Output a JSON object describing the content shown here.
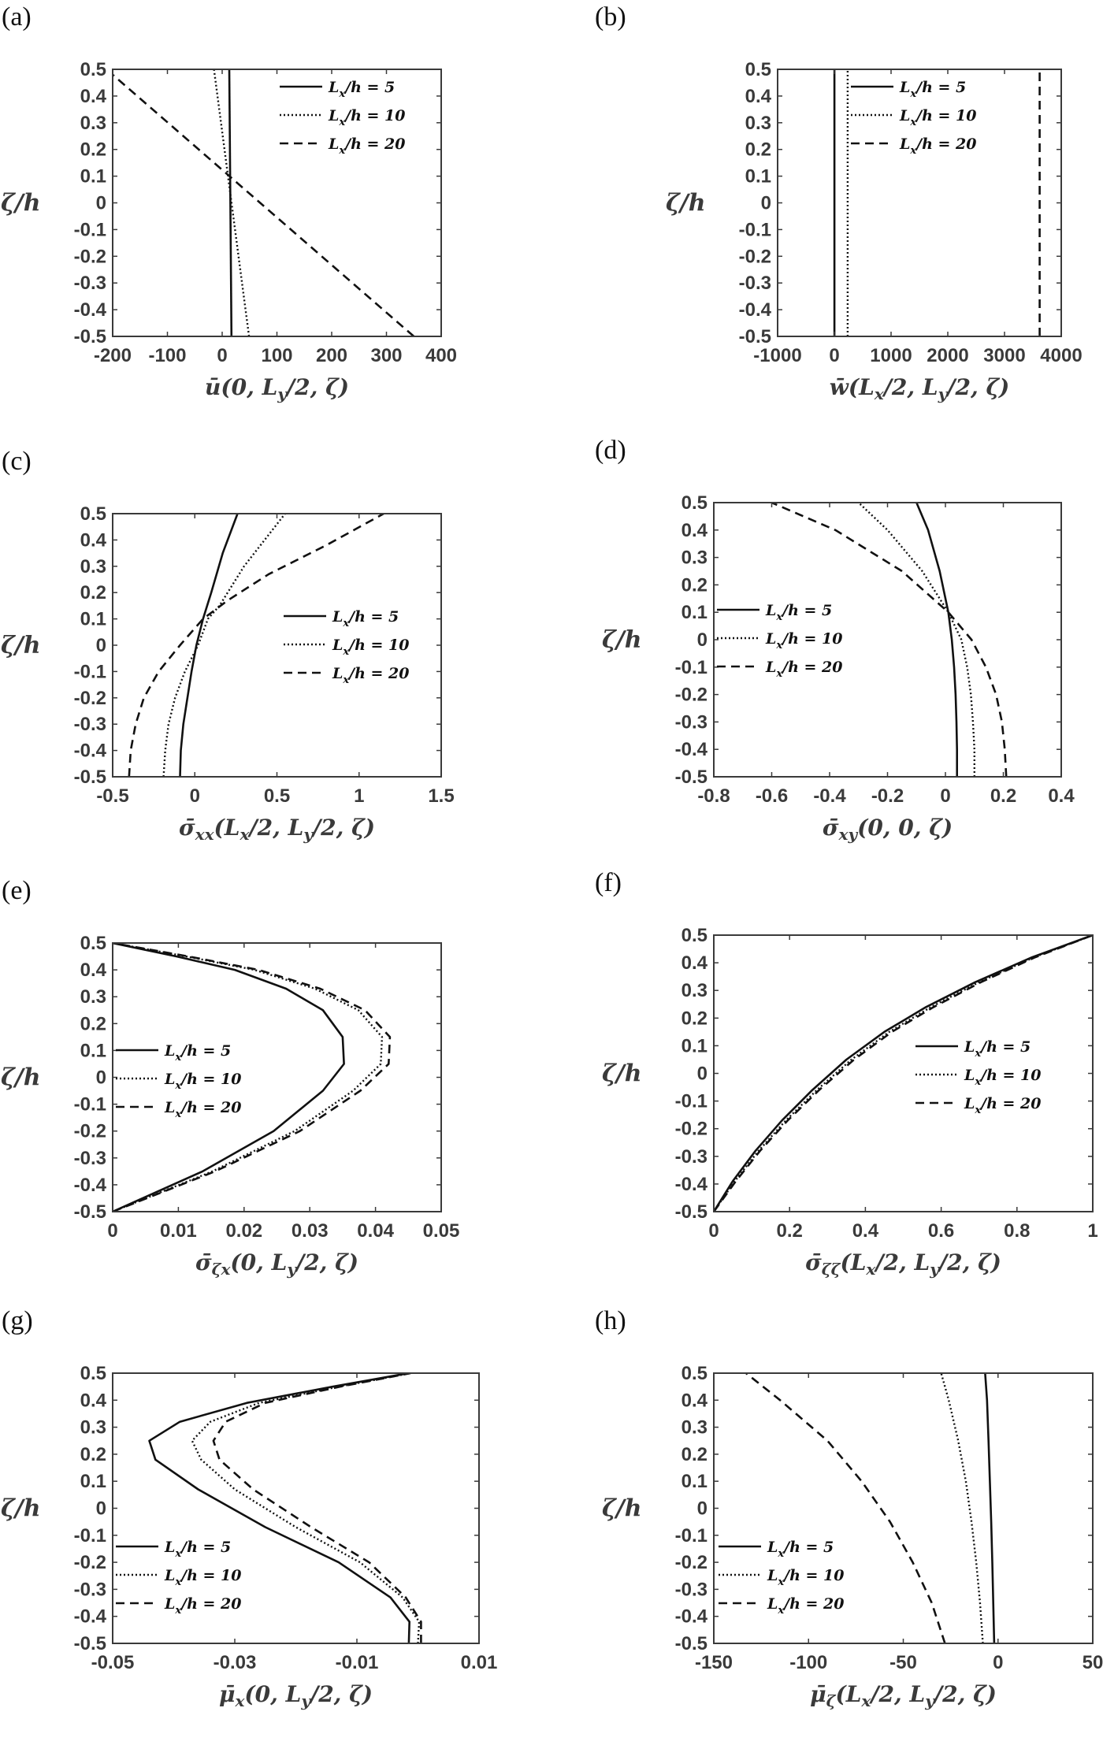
{
  "figure": {
    "panels": [
      {
        "letter": "(a)",
        "xlabel": "ū(0, L_y/2, ζ)",
        "ylabel": "ζ/h"
      },
      {
        "letter": "(b)",
        "xlabel": "w̄(L_x/2, L_y/2, ζ)",
        "ylabel": "ζ/h"
      },
      {
        "letter": "(c)",
        "xlabel": "σ̄_xx(L_x/2, L_y/2, ζ)",
        "ylabel": "ζ/h"
      },
      {
        "letter": "(d)",
        "xlabel": "σ̄_xy(0, 0, ζ)",
        "ylabel": "ζ/h"
      },
      {
        "letter": "(e)",
        "xlabel": "σ̄_ζx(0, L_y/2, ζ)",
        "ylabel": "ζ/h"
      },
      {
        "letter": "(f)",
        "xlabel": "σ̄_ζζ(L_x/2, L_y/2, ζ)",
        "ylabel": "ζ/h"
      },
      {
        "letter": "(g)",
        "xlabel": "μ̄_x(0, L_y/2, ζ)",
        "ylabel": "ζ/h"
      },
      {
        "letter": "(h)",
        "xlabel": "μ̄_ζ(L_x/2, L_y/2, ζ)",
        "ylabel": "ζ/h"
      }
    ]
  },
  "chart_data": [
    {
      "id": "a",
      "type": "line",
      "xlabel": "ū(0, L_y/2, ζ)",
      "ylabel": "ζ/h",
      "xlim": [
        -200,
        400
      ],
      "ylim": [
        -0.5,
        0.5
      ],
      "xticks": [
        -200,
        -100,
        0,
        100,
        200,
        300,
        400
      ],
      "yticks": [
        0.5,
        0.4,
        0.3,
        0.2,
        0.1,
        0,
        -0.1,
        -0.2,
        -0.3,
        -0.4,
        -0.5
      ],
      "legend": "top-right",
      "grid": false,
      "series": [
        {
          "name": "L_x/h = 5",
          "style": "solid",
          "x": [
            17,
            13
          ],
          "y": [
            -0.5,
            0.5
          ]
        },
        {
          "name": "L_x/h = 10",
          "style": "dotted",
          "x": [
            49,
            -15
          ],
          "y": [
            -0.5,
            0.5
          ]
        },
        {
          "name": "L_x/h = 20",
          "style": "dashed",
          "x": [
            350,
            -200
          ],
          "y": [
            -0.5,
            0.48
          ]
        }
      ]
    },
    {
      "id": "b",
      "type": "line",
      "xlabel": "w̄(L_x/2, L_y/2, ζ)",
      "ylabel": "ζ/h",
      "xlim": [
        -1000,
        4000
      ],
      "ylim": [
        -0.5,
        0.5
      ],
      "xticks": [
        -1000,
        0,
        1000,
        2000,
        3000,
        4000
      ],
      "yticks": [
        0.5,
        0.4,
        0.3,
        0.2,
        0.1,
        0,
        -0.1,
        -0.2,
        -0.3,
        -0.4,
        -0.5
      ],
      "legend": "top-right",
      "grid": false,
      "series": [
        {
          "name": "L_x/h = 5",
          "style": "solid",
          "x": [
            2,
            2
          ],
          "y": [
            -0.5,
            0.5
          ]
        },
        {
          "name": "L_x/h = 10",
          "style": "dotted",
          "x": [
            235,
            235
          ],
          "y": [
            -0.5,
            0.5
          ]
        },
        {
          "name": "L_x/h = 20",
          "style": "dashed",
          "x": [
            3620,
            3620
          ],
          "y": [
            -0.5,
            0.5
          ]
        }
      ]
    },
    {
      "id": "c",
      "type": "line",
      "xlabel": "σ̄_xx(L_x/2, L_y/2, ζ)",
      "ylabel": "ζ/h",
      "xlim": [
        -0.5,
        1.5
      ],
      "ylim": [
        -0.5,
        0.5
      ],
      "xticks": [
        -0.5,
        0,
        0.5,
        1,
        1.5
      ],
      "yticks": [
        0.5,
        0.4,
        0.3,
        0.2,
        0.1,
        0,
        -0.1,
        -0.2,
        -0.3,
        -0.4,
        -0.5
      ],
      "legend": "center-right",
      "grid": false,
      "series": [
        {
          "name": "L_x/h = 5",
          "style": "solid",
          "x": [
            -0.09,
            -0.085,
            -0.07,
            -0.045,
            -0.02,
            0.01,
            0.05,
            0.1,
            0.17,
            0.26
          ],
          "y": [
            -0.5,
            -0.4,
            -0.3,
            -0.2,
            -0.1,
            0,
            0.1,
            0.2,
            0.35,
            0.5
          ]
        },
        {
          "name": "L_x/h = 10",
          "style": "dotted",
          "x": [
            -0.19,
            -0.18,
            -0.16,
            -0.12,
            -0.06,
            0.02,
            0.08,
            0.15,
            0.3,
            0.55
          ],
          "y": [
            -0.5,
            -0.4,
            -0.3,
            -0.2,
            -0.1,
            0,
            0.1,
            0.15,
            0.3,
            0.5
          ]
        },
        {
          "name": "L_x/h = 20",
          "style": "dashed",
          "x": [
            -0.4,
            -0.39,
            -0.36,
            -0.31,
            -0.22,
            -0.09,
            0.05,
            0.2,
            0.45,
            0.8,
            1.15
          ],
          "y": [
            -0.5,
            -0.4,
            -0.3,
            -0.2,
            -0.1,
            0,
            0.1,
            0.17,
            0.27,
            0.38,
            0.5
          ]
        }
      ]
    },
    {
      "id": "d",
      "type": "line",
      "xlabel": "σ̄_xy(0, 0, ζ)",
      "ylabel": "ζ/h",
      "xlim": [
        -0.8,
        0.4
      ],
      "ylim": [
        -0.5,
        0.5
      ],
      "xticks": [
        -0.8,
        -0.6,
        -0.4,
        -0.2,
        0,
        0.2,
        0.4
      ],
      "yticks": [
        0.5,
        0.4,
        0.3,
        0.2,
        0.1,
        0,
        -0.1,
        -0.2,
        -0.3,
        -0.4,
        -0.5
      ],
      "legend": "center-left",
      "grid": false,
      "series": [
        {
          "name": "L_x/h = 5",
          "style": "solid",
          "x": [
            0.04,
            0.04,
            0.038,
            0.035,
            0.03,
            0.022,
            0.01,
            -0.02,
            -0.06,
            -0.1
          ],
          "y": [
            -0.5,
            -0.4,
            -0.3,
            -0.2,
            -0.1,
            0,
            0.1,
            0.25,
            0.4,
            0.5
          ]
        },
        {
          "name": "L_x/h = 10",
          "style": "dotted",
          "x": [
            0.1,
            0.1,
            0.095,
            0.088,
            0.075,
            0.055,
            0.01,
            -0.08,
            -0.2,
            -0.3
          ],
          "y": [
            -0.5,
            -0.4,
            -0.3,
            -0.2,
            -0.1,
            0,
            0.1,
            0.25,
            0.4,
            0.5
          ]
        },
        {
          "name": "L_x/h = 20",
          "style": "dashed",
          "x": [
            0.21,
            0.205,
            0.195,
            0.175,
            0.14,
            0.09,
            0.01,
            -0.15,
            -0.38,
            -0.6
          ],
          "y": [
            -0.5,
            -0.4,
            -0.3,
            -0.2,
            -0.1,
            0,
            0.1,
            0.25,
            0.4,
            0.5
          ]
        }
      ]
    },
    {
      "id": "e",
      "type": "line",
      "xlabel": "σ̄_ζx(0, L_y/2, ζ)",
      "ylabel": "ζ/h",
      "xlim": [
        0,
        0.05
      ],
      "ylim": [
        -0.5,
        0.5
      ],
      "xticks": [
        0,
        0.01,
        0.02,
        0.03,
        0.04,
        0.05
      ],
      "yticks": [
        0.5,
        0.4,
        0.3,
        0.2,
        0.1,
        0,
        -0.1,
        -0.2,
        -0.3,
        -0.4,
        -0.5
      ],
      "legend": "center-left",
      "grid": false,
      "series": [
        {
          "name": "L_x/h = 5",
          "style": "solid",
          "x": [
            0,
            0.0137,
            0.0245,
            0.032,
            0.0352,
            0.035,
            0.032,
            0.0264,
            0.0186,
            0.0097,
            0
          ],
          "y": [
            -0.5,
            -0.35,
            -0.2,
            -0.05,
            0.05,
            0.15,
            0.25,
            0.33,
            0.4,
            0.45,
            0.5
          ]
        },
        {
          "name": "L_x/h = 10",
          "style": "dotted",
          "x": [
            0,
            0.0152,
            0.0277,
            0.0366,
            0.0408,
            0.041,
            0.0374,
            0.0308,
            0.0216,
            0.0112,
            0
          ],
          "y": [
            -0.5,
            -0.35,
            -0.2,
            -0.05,
            0.05,
            0.15,
            0.25,
            0.33,
            0.4,
            0.45,
            0.5
          ]
        },
        {
          "name": "L_x/h = 20",
          "style": "dashed",
          "x": [
            0,
            0.0156,
            0.0285,
            0.0377,
            0.042,
            0.0422,
            0.0384,
            0.0316,
            0.0222,
            0.0115,
            0
          ],
          "y": [
            -0.5,
            -0.35,
            -0.2,
            -0.05,
            0.05,
            0.15,
            0.25,
            0.33,
            0.4,
            0.45,
            0.5
          ]
        }
      ]
    },
    {
      "id": "f",
      "type": "line",
      "xlabel": "σ̄_ζζ(L_x/2, L_y/2, ζ)",
      "ylabel": "ζ/h",
      "xlim": [
        0,
        1
      ],
      "ylim": [
        -0.5,
        0.5
      ],
      "xticks": [
        0,
        0.2,
        0.4,
        0.6,
        0.8,
        1
      ],
      "yticks": [
        0.5,
        0.4,
        0.3,
        0.2,
        0.1,
        0,
        -0.1,
        -0.2,
        -0.3,
        -0.4,
        -0.5
      ],
      "legend": "center-right",
      "grid": false,
      "series": [
        {
          "name": "L_x/h = 5",
          "style": "solid",
          "x": [
            0,
            0.05,
            0.11,
            0.18,
            0.26,
            0.35,
            0.45,
            0.56,
            0.69,
            0.84,
            1.0
          ],
          "y": [
            -0.5,
            -0.39,
            -0.28,
            -0.17,
            -0.06,
            0.05,
            0.15,
            0.24,
            0.33,
            0.42,
            0.5
          ]
        },
        {
          "name": "L_x/h = 10",
          "style": "dotted",
          "x": [
            0,
            0.055,
            0.118,
            0.19,
            0.272,
            0.363,
            0.463,
            0.573,
            0.7,
            0.845,
            1.0
          ],
          "y": [
            -0.5,
            -0.39,
            -0.28,
            -0.17,
            -0.06,
            0.05,
            0.15,
            0.24,
            0.33,
            0.42,
            0.5
          ]
        },
        {
          "name": "L_x/h = 20",
          "style": "dashed",
          "x": [
            0,
            0.058,
            0.122,
            0.195,
            0.278,
            0.37,
            0.47,
            0.58,
            0.705,
            0.848,
            1.0
          ],
          "y": [
            -0.5,
            -0.39,
            -0.28,
            -0.17,
            -0.06,
            0.05,
            0.15,
            0.24,
            0.33,
            0.42,
            0.5
          ]
        }
      ]
    },
    {
      "id": "g",
      "type": "line",
      "xlabel": "μ̄_x(0, L_y/2, ζ)",
      "ylabel": "ζ/h",
      "xlim": [
        -0.05,
        0.01
      ],
      "ylim": [
        -0.5,
        0.5
      ],
      "xticks": [
        -0.05,
        -0.03,
        -0.01,
        0.01
      ],
      "yticks": [
        0.5,
        0.4,
        0.3,
        0.2,
        0.1,
        0,
        -0.1,
        -0.2,
        -0.3,
        -0.4,
        -0.5
      ],
      "legend": "bottom-left",
      "grid": false,
      "series": [
        {
          "name": "L_x/h = 5",
          "style": "solid",
          "x": [
            -0.0015,
            -0.0014,
            -0.0045,
            -0.013,
            -0.025,
            -0.036,
            -0.043,
            -0.044,
            -0.039,
            -0.028,
            -0.014,
            -0.0015
          ],
          "y": [
            -0.5,
            -0.42,
            -0.33,
            -0.2,
            -0.07,
            0.07,
            0.18,
            0.25,
            0.32,
            0.39,
            0.45,
            0.5
          ]
        },
        {
          "name": "L_x/h = 10",
          "style": "dotted",
          "x": [
            0,
            0.0002,
            -0.0025,
            -0.0095,
            -0.02,
            -0.03,
            -0.0355,
            -0.037,
            -0.034,
            -0.026,
            -0.013,
            -0.0012
          ],
          "y": [
            -0.5,
            -0.42,
            -0.33,
            -0.2,
            -0.07,
            0.07,
            0.18,
            0.25,
            0.32,
            0.39,
            0.45,
            0.5
          ]
        },
        {
          "name": "L_x/h = 20",
          "style": "dashed",
          "x": [
            0.0005,
            0.0005,
            -0.002,
            -0.008,
            -0.0175,
            -0.027,
            -0.0325,
            -0.0335,
            -0.0315,
            -0.025,
            -0.0128,
            -0.0012
          ],
          "y": [
            -0.5,
            -0.42,
            -0.33,
            -0.2,
            -0.07,
            0.07,
            0.18,
            0.25,
            0.32,
            0.39,
            0.45,
            0.5
          ]
        }
      ]
    },
    {
      "id": "h",
      "type": "line",
      "xlabel": "μ̄_ζ(L_x/2, L_y/2, ζ)",
      "ylabel": "ζ/h",
      "xlim": [
        -150,
        50
      ],
      "ylim": [
        -0.5,
        0.5
      ],
      "xticks": [
        -150,
        -100,
        -50,
        0,
        50
      ],
      "yticks": [
        0.5,
        0.4,
        0.3,
        0.2,
        0.1,
        0,
        -0.1,
        -0.2,
        -0.3,
        -0.4,
        -0.5
      ],
      "legend": "bottom-left",
      "grid": false,
      "series": [
        {
          "name": "L_x/h = 5",
          "style": "solid",
          "x": [
            -2,
            -2.5,
            -3,
            -3.6,
            -4.3,
            -5,
            -5.8,
            -6.8
          ],
          "y": [
            -0.5,
            -0.35,
            -0.2,
            -0.05,
            0.1,
            0.25,
            0.4,
            0.5
          ]
        },
        {
          "name": "L_x/h = 10",
          "style": "dotted",
          "x": [
            -8,
            -9.5,
            -11.5,
            -14,
            -17,
            -21,
            -26,
            -30
          ],
          "y": [
            -0.5,
            -0.35,
            -0.2,
            -0.05,
            0.1,
            0.25,
            0.4,
            0.5
          ]
        },
        {
          "name": "L_x/h = 20",
          "style": "dashed",
          "x": [
            -28,
            -35,
            -45,
            -57,
            -72,
            -90,
            -115,
            -133
          ],
          "y": [
            -0.5,
            -0.35,
            -0.2,
            -0.05,
            0.1,
            0.25,
            0.4,
            0.5
          ]
        }
      ]
    }
  ]
}
